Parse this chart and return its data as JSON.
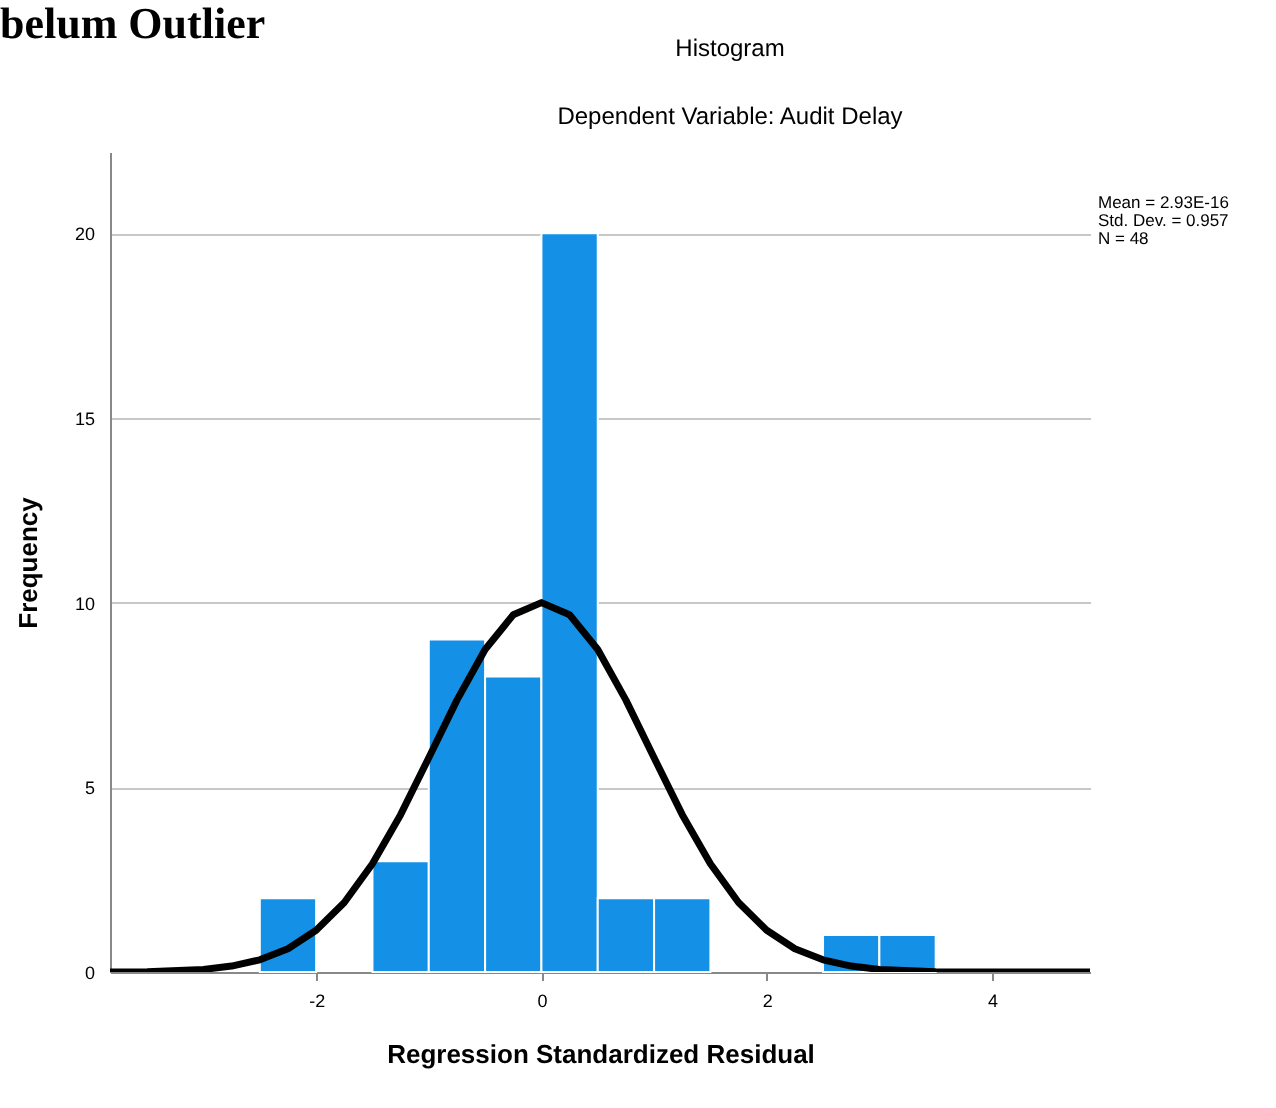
{
  "chart_data": {
    "type": "histogram",
    "title": "Histogram",
    "subtitle": "Dependent Variable: Audit Delay",
    "xlabel": "Regression Standardized Residual",
    "ylabel": "Frequency",
    "bins": [
      -2.5,
      -2,
      -1.5,
      -1,
      -0.5,
      0,
      0.5,
      1,
      1.5,
      2,
      2.5,
      3,
      3.5
    ],
    "values": [
      2,
      0,
      3,
      9,
      8,
      20,
      2,
      2,
      0,
      0,
      1,
      1
    ],
    "color": "#1491e6",
    "series": [
      {
        "type": "line",
        "color": "#000000",
        "x": [
          -3.83,
          -3.5,
          -3,
          -2.75,
          -2.5,
          -2.25,
          -2,
          -1.75,
          -1.5,
          -1.25,
          -1,
          -0.75,
          -0.5,
          -0.25,
          0,
          0.25,
          0.5,
          0.75,
          1,
          1.25,
          1.5,
          1.75,
          2,
          2.25,
          2.5,
          2.75,
          3,
          3.5,
          4,
          4.87
        ],
        "values": [
          0.0,
          0.01,
          0.07,
          0.16,
          0.33,
          0.63,
          1.13,
          1.88,
          2.93,
          4.26,
          5.8,
          7.36,
          8.73,
          9.67,
          10.0,
          9.67,
          8.73,
          7.36,
          5.8,
          4.26,
          2.93,
          1.88,
          1.13,
          0.63,
          0.33,
          0.16,
          0.07,
          0.01,
          0.0,
          0.0
        ]
      }
    ],
    "xlim": [
      -3.83,
      4.87
    ],
    "xticks": [
      {
        "value": -2,
        "label": "-2"
      },
      0,
      2,
      4
    ],
    "ylim": [
      0,
      22.2
    ],
    "yticks": [
      0,
      5,
      10,
      15,
      20
    ],
    "grid": "y",
    "legend": false,
    "annotations": [
      "belum Outlier",
      "Mean = 2.93E-16",
      "Std. Dev. = 0.957",
      "N = 48"
    ]
  }
}
